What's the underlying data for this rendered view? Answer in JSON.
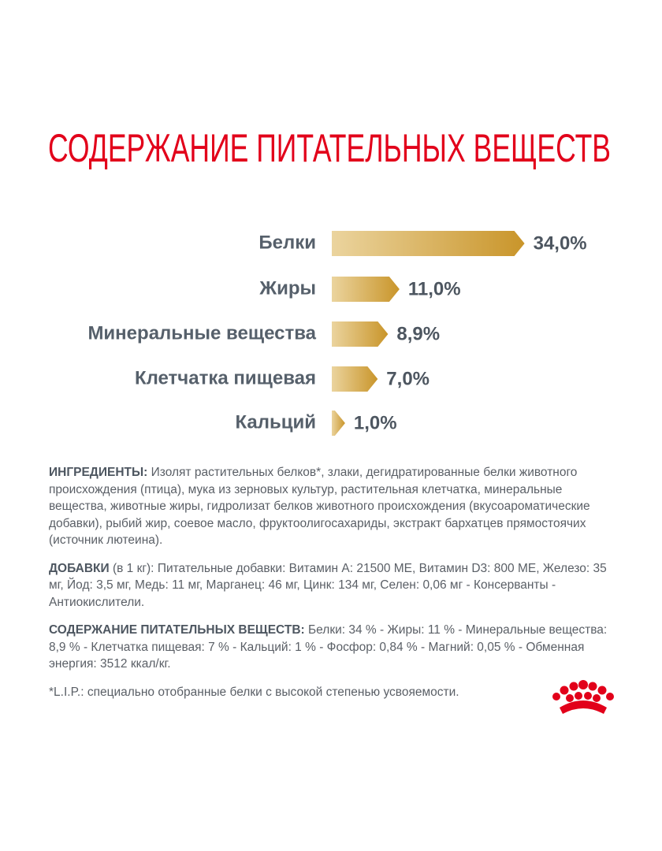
{
  "chart_data": {
    "type": "bar",
    "orientation": "horizontal",
    "title": "СОДЕРЖАНИЕ ПИТАТЕЛЬНЫХ ВЕЩЕСТВ",
    "categories": [
      "Белки",
      "Жиры",
      "Минеральные вещества",
      "Клетчатка пищевая",
      "Кальций"
    ],
    "values": [
      34.0,
      11.0,
      8.9,
      7.0,
      1.0
    ],
    "value_labels": [
      "34,0%",
      "11,0%",
      "8,9%",
      "7,0%",
      "1,0%"
    ],
    "color": [
      "#ebd49e",
      "#c9952a"
    ]
  },
  "notes": [
    {
      "label": "ИНГРЕДИЕНТЫ:",
      "text": "Изолят растительных белков*, злаки, дегидратированные белки животного происхождения (птица), мука из зерновых культур, растительная клетчатка, минеральные вещества, животные жиры, гидролизат белков животного происхождения (вкусоароматические добавки), рыбий жир, соевое масло, фруктоолигосахариды, экстракт бархатцев прямостоячих (источник лютеина)."
    },
    {
      "label": "ДОБАВКИ",
      "qualifier": "(в 1 кг):",
      "text": "Питательные добавки: Витамин A: 21500 МЕ, Витамин D3: 800 МЕ, Железо: 35 мг, Йод: 3,5 мг, Медь: 11 мг, Марганец: 46 мг, Цинк: 134 мг, Селен: 0,06 мг - Консерванты - Антиокислители."
    },
    {
      "label": "СОДЕРЖАНИЕ ПИТАТЕЛЬНЫХ ВЕЩЕСТВ:",
      "text": "Белки: 34 % - Жиры: 11 % - Минеральные вещества: 8,9 % - Клетчатка пищевая: 7 % - Кальций: 1 % - Фосфор: 0,84 % - Магний: 0,05 % - Обменная энергия: 3512 ккал/кг."
    }
  ],
  "footnote": "*L.I.P.: специально отобранные белки с высокой степенью усвояемости."
}
